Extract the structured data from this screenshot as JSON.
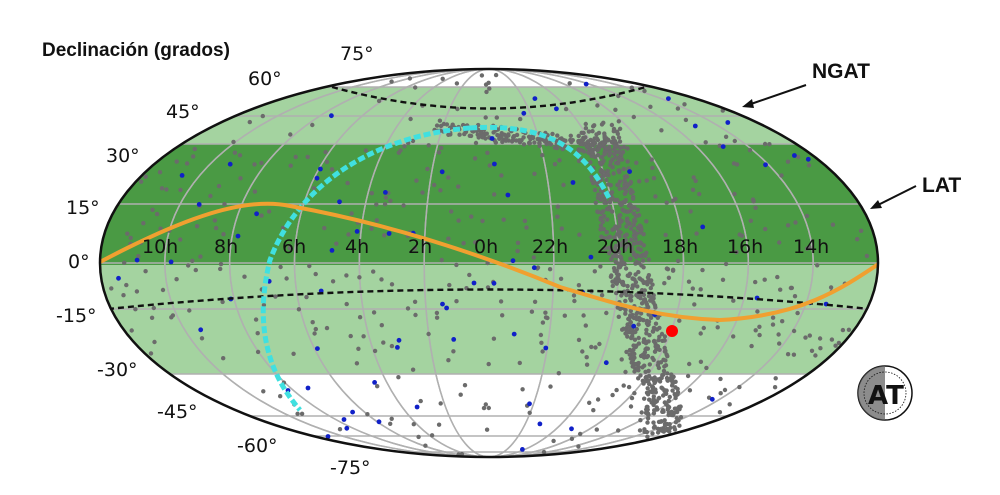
{
  "axis_title": "Declinación (grados)",
  "declination_labels": [
    "75°",
    "60°",
    "45°",
    "30°",
    "15°",
    "0°",
    "-15°",
    "-30°",
    "-45°",
    "-60°",
    "-75°"
  ],
  "right_ascension_labels": [
    "10h",
    "8h",
    "6h",
    "4h",
    "2h",
    "0h",
    "22h",
    "20h",
    "18h",
    "16h",
    "14h"
  ],
  "telescopes": [
    {
      "name": "NGAT"
    },
    {
      "name": "LAT"
    }
  ],
  "logo_text": "AT",
  "colors": {
    "band_light": "#a4d3a0",
    "band_dark": "#4a9a44",
    "grid": "#b0b0b0",
    "sources_grey": "#6b6b6b",
    "sources_blue": "#1020c8",
    "ecliptic": "#f0a030",
    "galactic_plane_segment": "#40e0e0",
    "target": "#ff0000"
  }
}
